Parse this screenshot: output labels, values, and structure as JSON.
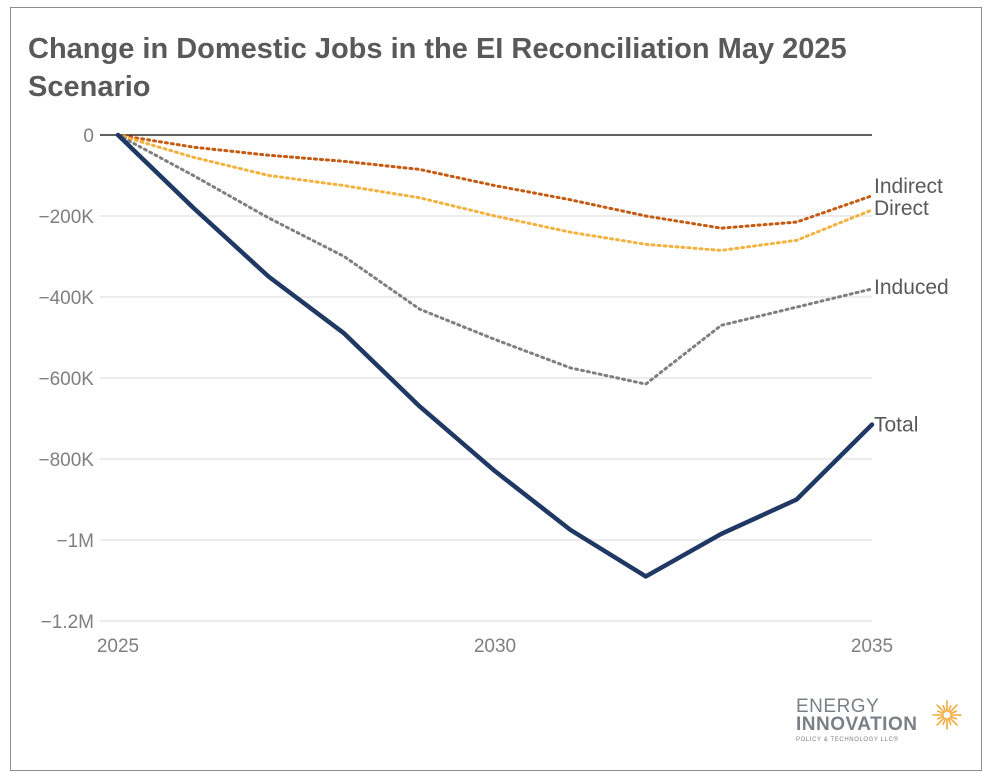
{
  "chart_data": {
    "type": "line",
    "title": "Change in Domestic Jobs in the EI Reconciliation May 2025 Scenario",
    "x": [
      2025,
      2026,
      2027,
      2028,
      2029,
      2030,
      2031,
      2032,
      2033,
      2034,
      2035
    ],
    "x_ticks": [
      2025,
      2030,
      2035
    ],
    "x_tick_labels": [
      "2025",
      "2030",
      "2035"
    ],
    "ylim": [
      -1200000,
      0
    ],
    "y_ticks": [
      0,
      -200000,
      -400000,
      -600000,
      -800000,
      -1000000,
      -1200000
    ],
    "y_tick_labels": [
      "0",
      "−200K",
      "−400K",
      "−600K",
      "−800K",
      "−1M",
      "−1.2M"
    ],
    "grid": true,
    "legend": "labels at right end of each line",
    "series": [
      {
        "name": "Indirect",
        "style": "dotted",
        "color": "#c55a11",
        "values": [
          0,
          -30000,
          -50000,
          -65000,
          -85000,
          -125000,
          -160000,
          -200000,
          -230000,
          -215000,
          -150000
        ]
      },
      {
        "name": "Direct",
        "style": "dotted",
        "color": "#f4b13e",
        "values": [
          0,
          -55000,
          -100000,
          -125000,
          -155000,
          -200000,
          -240000,
          -270000,
          -285000,
          -260000,
          -185000
        ]
      },
      {
        "name": "Induced",
        "style": "dotted",
        "color": "#7f7f7f",
        "values": [
          0,
          -100000,
          -205000,
          -300000,
          -430000,
          -505000,
          -575000,
          -615000,
          -470000,
          -425000,
          -380000
        ]
      },
      {
        "name": "Total",
        "style": "solid",
        "color": "#1f3864",
        "values": [
          0,
          -180000,
          -350000,
          -490000,
          -670000,
          -830000,
          -975000,
          -1090000,
          -985000,
          -900000,
          -715000
        ]
      }
    ]
  },
  "logo": {
    "line1": "ENERGY",
    "line2": "INNOVATION",
    "line3": "POLICY & TECHNOLOGY LLC®"
  },
  "colors": {
    "axis_zero": "#000000",
    "gridline": "#d9d9d9",
    "frame": "#8c8c8c",
    "sun": "#f4a93b"
  }
}
